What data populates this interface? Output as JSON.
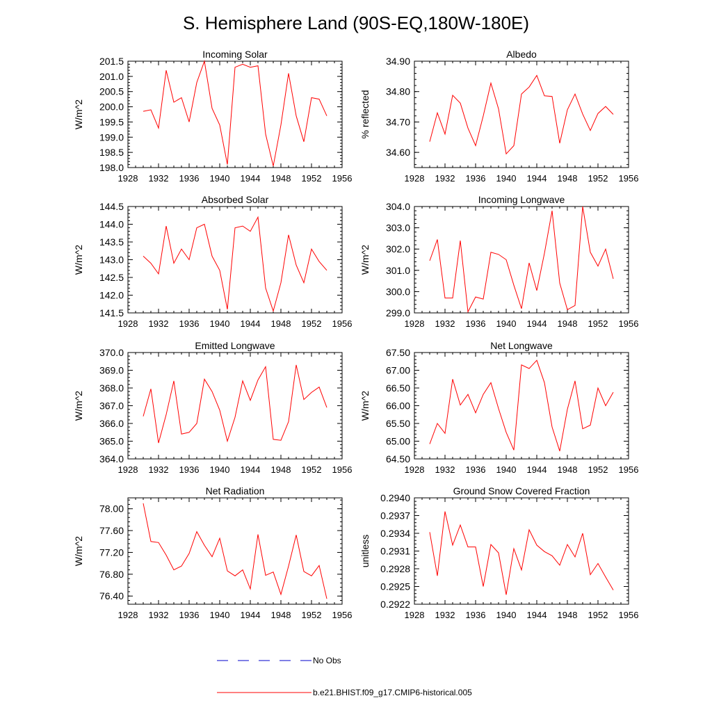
{
  "title": "S. Hemisphere Land (90S-EQ,180W-180E)",
  "colors": {
    "model": "#ff0000",
    "obs": "#0000cc",
    "axis": "#000000"
  },
  "legend": {
    "obs_label": "No Obs",
    "model_label": "b.e21.BHIST.f09_g17.CMIP6-historical.005"
  },
  "chart_data": [
    {
      "type": "line",
      "title": "Incoming Solar",
      "ylabel": "W/m^2",
      "xlim": [
        1928,
        1956
      ],
      "ylim": [
        198.0,
        201.5
      ],
      "xticks": [
        "1928",
        "1932",
        "1936",
        "1940",
        "1944",
        "1948",
        "1952",
        "1956"
      ],
      "yticks": [
        "198.0",
        "198.5",
        "199.0",
        "199.5",
        "200.0",
        "200.5",
        "201.0",
        "201.5"
      ],
      "series": [
        {
          "name": "b.e21.BHIST.f09_g17.CMIP6-historical.005",
          "x": [
            1930,
            1931,
            1932,
            1933,
            1934,
            1935,
            1936,
            1937,
            1938,
            1939,
            1940,
            1941,
            1942,
            1943,
            1944,
            1945,
            1946,
            1947,
            1948,
            1949,
            1950,
            1951,
            1952,
            1953,
            1954
          ],
          "values": [
            199.85,
            199.9,
            199.3,
            201.2,
            200.15,
            200.3,
            199.5,
            200.8,
            201.5,
            199.95,
            199.4,
            198.1,
            201.3,
            201.4,
            201.3,
            201.35,
            199.1,
            198.05,
            199.4,
            201.1,
            199.7,
            198.85,
            200.3,
            200.25,
            199.7
          ]
        }
      ]
    },
    {
      "type": "line",
      "title": "Albedo",
      "ylabel": "% reflected",
      "xlim": [
        1928,
        1956
      ],
      "ylim": [
        34.55,
        34.9
      ],
      "xticks": [
        "1928",
        "1932",
        "1936",
        "1940",
        "1944",
        "1948",
        "1952",
        "1956"
      ],
      "yticks": [
        "34.60",
        "34.70",
        "34.80",
        "34.90"
      ],
      "series": [
        {
          "name": "b.e21.BHIST.f09_g17.CMIP6-historical.005",
          "x": [
            1930,
            1931,
            1932,
            1933,
            1934,
            1935,
            1936,
            1937,
            1938,
            1939,
            1940,
            1941,
            1942,
            1943,
            1944,
            1945,
            1946,
            1947,
            1948,
            1949,
            1950,
            1951,
            1952,
            1953,
            1954
          ],
          "values": [
            34.635,
            34.73,
            34.66,
            34.788,
            34.762,
            34.68,
            34.622,
            34.72,
            34.828,
            34.743,
            34.595,
            34.622,
            34.792,
            34.815,
            34.853,
            34.786,
            34.784,
            34.63,
            34.74,
            34.792,
            34.726,
            34.672,
            34.728,
            34.751,
            34.725
          ]
        }
      ]
    },
    {
      "type": "line",
      "title": "Absorbed Solar",
      "ylabel": "W/m^2",
      "xlim": [
        1928,
        1956
      ],
      "ylim": [
        141.5,
        144.5
      ],
      "xticks": [
        "1928",
        "1932",
        "1936",
        "1940",
        "1944",
        "1948",
        "1952",
        "1956"
      ],
      "yticks": [
        "141.5",
        "142.0",
        "142.5",
        "143.0",
        "143.5",
        "144.0",
        "144.5"
      ],
      "series": [
        {
          "name": "b.e21.BHIST.f09_g17.CMIP6-historical.005",
          "x": [
            1930,
            1931,
            1932,
            1933,
            1934,
            1935,
            1936,
            1937,
            1938,
            1939,
            1940,
            1941,
            1942,
            1943,
            1944,
            1945,
            1946,
            1947,
            1948,
            1949,
            1950,
            1951,
            1952,
            1953,
            1954
          ],
          "values": [
            143.1,
            142.9,
            142.6,
            143.95,
            142.9,
            143.3,
            143.0,
            143.9,
            144.0,
            143.1,
            142.7,
            141.6,
            143.9,
            143.95,
            143.8,
            144.2,
            142.2,
            141.55,
            142.35,
            143.7,
            142.85,
            142.35,
            143.3,
            142.95,
            142.7
          ]
        }
      ]
    },
    {
      "type": "line",
      "title": "Incoming Longwave",
      "ylabel": "W/m^2",
      "xlim": [
        1928,
        1956
      ],
      "ylim": [
        299.0,
        304.0
      ],
      "xticks": [
        "1928",
        "1932",
        "1936",
        "1940",
        "1944",
        "1948",
        "1952",
        "1956"
      ],
      "yticks": [
        "299.0",
        "300.0",
        "301.0",
        "302.0",
        "303.0",
        "304.0"
      ],
      "series": [
        {
          "name": "b.e21.BHIST.f09_g17.CMIP6-historical.005",
          "x": [
            1930,
            1931,
            1932,
            1933,
            1934,
            1935,
            1936,
            1937,
            1938,
            1939,
            1940,
            1941,
            1942,
            1943,
            1944,
            1945,
            1946,
            1947,
            1948,
            1949,
            1950,
            1951,
            1952,
            1953,
            1954
          ],
          "values": [
            301.45,
            302.45,
            299.7,
            299.7,
            302.4,
            299.05,
            299.75,
            299.65,
            301.85,
            301.75,
            301.5,
            300.3,
            299.2,
            301.35,
            300.05,
            301.8,
            303.8,
            300.4,
            299.15,
            299.35,
            304.0,
            301.85,
            301.2,
            302.0,
            300.6
          ]
        }
      ]
    },
    {
      "type": "line",
      "title": "Emitted Longwave",
      "ylabel": "W/m^2",
      "xlim": [
        1928,
        1956
      ],
      "ylim": [
        364.0,
        370.0
      ],
      "xticks": [
        "1928",
        "1932",
        "1936",
        "1940",
        "1944",
        "1948",
        "1952",
        "1956"
      ],
      "yticks": [
        "364.0",
        "365.0",
        "366.0",
        "367.0",
        "368.0",
        "369.0",
        "370.0"
      ],
      "series": [
        {
          "name": "b.e21.BHIST.f09_g17.CMIP6-historical.005",
          "x": [
            1930,
            1931,
            1932,
            1933,
            1934,
            1935,
            1936,
            1937,
            1938,
            1939,
            1940,
            1941,
            1942,
            1943,
            1944,
            1945,
            1946,
            1947,
            1948,
            1949,
            1950,
            1951,
            1952,
            1953,
            1954
          ],
          "values": [
            366.4,
            367.95,
            364.9,
            366.5,
            368.4,
            365.4,
            365.5,
            366.0,
            368.5,
            367.8,
            366.75,
            365.0,
            366.35,
            368.4,
            367.3,
            368.45,
            369.2,
            365.1,
            365.05,
            366.1,
            369.3,
            367.35,
            367.75,
            368.05,
            366.9
          ]
        }
      ]
    },
    {
      "type": "line",
      "title": "Net Longwave",
      "ylabel": "W/m^2",
      "xlim": [
        1928,
        1956
      ],
      "ylim": [
        64.5,
        67.5
      ],
      "xticks": [
        "1928",
        "1932",
        "1936",
        "1940",
        "1944",
        "1948",
        "1952",
        "1956"
      ],
      "yticks": [
        "64.50",
        "65.00",
        "65.50",
        "66.00",
        "66.50",
        "67.00",
        "67.50"
      ],
      "series": [
        {
          "name": "b.e21.BHIST.f09_g17.CMIP6-historical.005",
          "x": [
            1930,
            1931,
            1932,
            1933,
            1934,
            1935,
            1936,
            1937,
            1938,
            1939,
            1940,
            1941,
            1942,
            1943,
            1944,
            1945,
            1946,
            1947,
            1948,
            1949,
            1950,
            1951,
            1952,
            1953,
            1954
          ],
          "values": [
            64.92,
            65.5,
            65.22,
            66.75,
            66.02,
            66.32,
            65.8,
            66.32,
            66.65,
            65.92,
            65.25,
            64.75,
            67.15,
            67.05,
            67.28,
            66.65,
            65.4,
            64.72,
            65.9,
            66.7,
            65.35,
            65.45,
            66.5,
            66.0,
            66.38
          ]
        }
      ]
    },
    {
      "type": "line",
      "title": "Net Radiation",
      "ylabel": "W/m^2",
      "xlim": [
        1928,
        1956
      ],
      "ylim": [
        76.25,
        78.2
      ],
      "xticks": [
        "1928",
        "1932",
        "1936",
        "1940",
        "1944",
        "1948",
        "1952",
        "1956"
      ],
      "yticks": [
        "76.40",
        "76.80",
        "77.20",
        "77.60",
        "78.00"
      ],
      "series": [
        {
          "name": "b.e21.BHIST.f09_g17.CMIP6-historical.005",
          "x": [
            1930,
            1931,
            1932,
            1933,
            1934,
            1935,
            1936,
            1937,
            1938,
            1939,
            1940,
            1941,
            1942,
            1943,
            1944,
            1945,
            1946,
            1947,
            1948,
            1949,
            1950,
            1951,
            1952,
            1953,
            1954
          ],
          "values": [
            78.1,
            77.4,
            77.38,
            77.15,
            76.88,
            76.95,
            77.18,
            77.58,
            77.33,
            77.12,
            77.46,
            76.86,
            76.77,
            76.88,
            76.53,
            77.53,
            76.78,
            76.84,
            76.43,
            76.95,
            77.52,
            76.85,
            76.77,
            76.96,
            76.35
          ]
        }
      ]
    },
    {
      "type": "line",
      "title": "Ground Snow Covered Fraction",
      "ylabel": "unitless",
      "xlim": [
        1928,
        1956
      ],
      "ylim": [
        0.2922,
        0.294
      ],
      "xticks": [
        "1928",
        "1932",
        "1936",
        "1940",
        "1944",
        "1948",
        "1952",
        "1956"
      ],
      "yticks": [
        "0.2922",
        "0.2925",
        "0.2928",
        "0.2931",
        "0.2934",
        "0.2937",
        "0.2940"
      ],
      "series": [
        {
          "name": "b.e21.BHIST.f09_g17.CMIP6-historical.005",
          "x": [
            1930,
            1931,
            1932,
            1933,
            1934,
            1935,
            1936,
            1937,
            1938,
            1939,
            1940,
            1941,
            1942,
            1943,
            1944,
            1945,
            1946,
            1947,
            1948,
            1949,
            1950,
            1951,
            1952,
            1953,
            1954
          ],
          "values": [
            0.29342,
            0.29268,
            0.29377,
            0.2932,
            0.29354,
            0.29317,
            0.29317,
            0.2925,
            0.29321,
            0.29307,
            0.29236,
            0.29314,
            0.29278,
            0.29346,
            0.2932,
            0.29309,
            0.29302,
            0.29286,
            0.29321,
            0.293,
            0.2934,
            0.2927,
            0.29289,
            0.29266,
            0.29244
          ]
        }
      ]
    }
  ]
}
